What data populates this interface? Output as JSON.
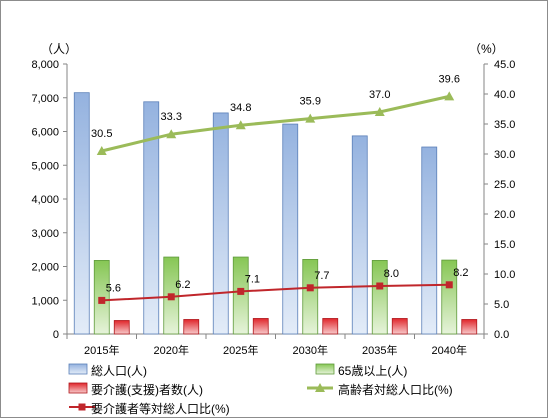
{
  "chart_data": {
    "type": "bar",
    "categories": [
      "2015年",
      "2020年",
      "2025年",
      "2030年",
      "2035年",
      "2040年"
    ],
    "left_axis": {
      "unit": "（人）",
      "ylim": [
        0,
        8000
      ],
      "ticks": [
        "0",
        "1,000",
        "2,000",
        "3,000",
        "4,000",
        "5,000",
        "6,000",
        "7,000",
        "8,000"
      ]
    },
    "right_axis": {
      "unit": "（%）",
      "ylim": [
        0,
        45
      ],
      "ticks": [
        "0.0",
        "5.0",
        "10.0",
        "15.0",
        "20.0",
        "25.0",
        "30.0",
        "35.0",
        "40.0",
        "45.0"
      ]
    },
    "series": [
      {
        "name": "総人口(人)",
        "type": "bar",
        "axis": "left",
        "color": "#9bb7e3",
        "values": [
          7150,
          6880,
          6550,
          6220,
          5870,
          5540
        ]
      },
      {
        "name": "65歳以上(人)",
        "type": "bar",
        "axis": "left",
        "color": "#8fcd5f",
        "values": [
          2180,
          2280,
          2280,
          2210,
          2180,
          2190
        ]
      },
      {
        "name": "要介護(支援)者数(人)",
        "type": "bar",
        "axis": "left",
        "color": "#e0262b",
        "values": [
          400,
          430,
          460,
          460,
          460,
          430
        ]
      },
      {
        "name": "高齢者対総人口比(%)",
        "type": "line",
        "axis": "right",
        "color": "#9bbb59",
        "values": [
          30.5,
          33.3,
          34.8,
          35.9,
          37.0,
          39.6
        ],
        "labels": [
          "30.5",
          "33.3",
          "34.8",
          "35.9",
          "37.0",
          "39.6"
        ]
      },
      {
        "name": "要介護者等対総人口比(%)",
        "type": "line",
        "axis": "right",
        "color": "#c0262b",
        "values": [
          5.6,
          6.2,
          7.1,
          7.7,
          8.0,
          8.2
        ],
        "labels": [
          "5.6",
          "6.2",
          "7.1",
          "7.7",
          "8.0",
          "8.2"
        ]
      }
    ],
    "grid": false,
    "legend_position": "bottom"
  }
}
